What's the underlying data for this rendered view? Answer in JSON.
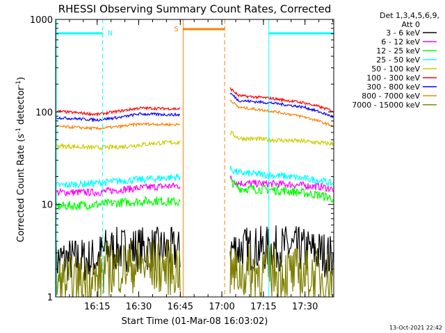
{
  "chart_data": {
    "type": "line",
    "title": "RHESSI Observing Summary Count Rates, Corrected",
    "xlabel": "Start Time (01-Mar-08 16:03:02)",
    "ylabel": "Corrected Count Rate (s⁻¹ detector⁻¹)",
    "ylabel_main": "Corrected Count Rate (s",
    "ylabel_sup1": "-1",
    "ylabel_mid": " detector",
    "ylabel_sup2": "-1",
    "ylabel_end": ")",
    "yscale": "log",
    "ylim": [
      1,
      1000
    ],
    "xlim_minutes": [
      16.0,
      17.673
    ],
    "x_ticks": [
      {
        "label": "16:15",
        "min": 16.25
      },
      {
        "label": "16:30",
        "min": 16.5
      },
      {
        "label": "16:45",
        "min": 16.75
      },
      {
        "label": "17:00",
        "min": 17.0
      },
      {
        "label": "17:15",
        "min": 17.25
      },
      {
        "label": "17:30",
        "min": 17.5
      }
    ],
    "y_ticks": [
      {
        "label": "1",
        "value": 1
      },
      {
        "label": "10",
        "value": 10
      },
      {
        "label": "100",
        "value": 100
      },
      {
        "label": "1000",
        "value": 1000
      }
    ],
    "legend_header_1": "Det 1,3,4,5,6,9,",
    "legend_header_2": "Att 0",
    "legend_placement": "right",
    "series": [
      {
        "name": "3 - 6 keV",
        "color": "#000000",
        "segments": [
          {
            "t0": 16.0,
            "t1": 16.75,
            "pts": [
              [
                16.0,
                2.5
              ],
              [
                16.2,
                2.5
              ],
              [
                16.25,
                2.6
              ],
              [
                16.3,
                3.2
              ],
              [
                16.5,
                3.3
              ],
              [
                16.7,
                3.2
              ],
              [
                16.75,
                3.0
              ]
            ],
            "noise": 0.5
          },
          {
            "t0": 17.05,
            "t1": 17.673,
            "pts": [
              [
                17.05,
                3.3
              ],
              [
                17.2,
                3.3
              ],
              [
                17.4,
                3.4
              ],
              [
                17.6,
                3.0
              ],
              [
                17.673,
                2.6
              ]
            ],
            "noise": 0.5
          }
        ]
      },
      {
        "name": "6 - 12 keV",
        "color": "#ff00ff",
        "segments": [
          {
            "t0": 16.0,
            "t1": 16.75,
            "pts": [
              [
                16.0,
                13.5
              ],
              [
                16.25,
                13.5
              ],
              [
                16.4,
                14.5
              ],
              [
                16.6,
                15.5
              ],
              [
                16.75,
                16.0
              ]
            ],
            "noise": 0.08
          },
          {
            "t0": 17.05,
            "t1": 17.673,
            "pts": [
              [
                17.05,
                19
              ],
              [
                17.1,
                17
              ],
              [
                17.4,
                16.5
              ],
              [
                17.6,
                15.5
              ],
              [
                17.673,
                14.5
              ]
            ],
            "noise": 0.08
          }
        ]
      },
      {
        "name": "12 - 25 keV",
        "color": "#00ff00",
        "segments": [
          {
            "t0": 16.0,
            "t1": 16.75,
            "pts": [
              [
                16.0,
                9.5
              ],
              [
                16.25,
                10.0
              ],
              [
                16.4,
                10.5
              ],
              [
                16.6,
                11.0
              ],
              [
                16.75,
                10.5
              ]
            ],
            "noise": 0.1
          },
          {
            "t0": 17.05,
            "t1": 17.673,
            "pts": [
              [
                17.05,
                18
              ],
              [
                17.1,
                15
              ],
              [
                17.4,
                14
              ],
              [
                17.6,
                12.5
              ],
              [
                17.673,
                11.5
              ]
            ],
            "noise": 0.1
          }
        ]
      },
      {
        "name": "25 - 50 keV",
        "color": "#00ffff",
        "segments": [
          {
            "t0": 16.0,
            "t1": 16.75,
            "pts": [
              [
                16.0,
                16
              ],
              [
                16.25,
                17
              ],
              [
                16.4,
                18
              ],
              [
                16.6,
                19
              ],
              [
                16.75,
                20
              ]
            ],
            "noise": 0.08
          },
          {
            "t0": 17.05,
            "t1": 17.673,
            "pts": [
              [
                17.05,
                24
              ],
              [
                17.1,
                22
              ],
              [
                17.4,
                20
              ],
              [
                17.6,
                18
              ],
              [
                17.673,
                16.5
              ]
            ],
            "noise": 0.08
          }
        ]
      },
      {
        "name": "50 - 100 keV",
        "color": "#cccc00",
        "segments": [
          {
            "t0": 16.0,
            "t1": 16.75,
            "pts": [
              [
                16.0,
                43
              ],
              [
                16.25,
                41
              ],
              [
                16.4,
                42
              ],
              [
                16.6,
                46
              ],
              [
                16.75,
                47
              ]
            ],
            "noise": 0.05
          },
          {
            "t0": 17.05,
            "t1": 17.673,
            "pts": [
              [
                17.05,
                60
              ],
              [
                17.1,
                52
              ],
              [
                17.3,
                50
              ],
              [
                17.5,
                48
              ],
              [
                17.673,
                45
              ]
            ],
            "noise": 0.05
          }
        ]
      },
      {
        "name": "100 - 300 keV",
        "color": "#ff0000",
        "segments": [
          {
            "t0": 16.0,
            "t1": 16.75,
            "pts": [
              [
                16.0,
                102
              ],
              [
                16.25,
                94
              ],
              [
                16.4,
                103
              ],
              [
                16.5,
                110
              ],
              [
                16.75,
                108
              ]
            ],
            "noise": 0.03
          },
          {
            "t0": 17.05,
            "t1": 17.673,
            "pts": [
              [
                17.05,
                180
              ],
              [
                17.1,
                150
              ],
              [
                17.3,
                140
              ],
              [
                17.5,
                125
              ],
              [
                17.673,
                102
              ]
            ],
            "noise": 0.03
          }
        ]
      },
      {
        "name": "300 - 800 keV",
        "color": "#0000ff",
        "segments": [
          {
            "t0": 16.0,
            "t1": 16.75,
            "pts": [
              [
                16.0,
                87
              ],
              [
                16.25,
                82
              ],
              [
                16.4,
                88
              ],
              [
                16.5,
                95
              ],
              [
                16.75,
                93
              ]
            ],
            "noise": 0.03
          },
          {
            "t0": 17.05,
            "t1": 17.673,
            "pts": [
              [
                17.05,
                160
              ],
              [
                17.1,
                133
              ],
              [
                17.3,
                125
              ],
              [
                17.5,
                112
              ],
              [
                17.673,
                88
              ]
            ],
            "noise": 0.03
          }
        ]
      },
      {
        "name": "800 - 7000 keV",
        "color": "#ff8000",
        "segments": [
          {
            "t0": 16.0,
            "t1": 16.75,
            "pts": [
              [
                16.0,
                70
              ],
              [
                16.25,
                66
              ],
              [
                16.4,
                70
              ],
              [
                16.5,
                74
              ],
              [
                16.75,
                73
              ]
            ],
            "noise": 0.03
          },
          {
            "t0": 17.05,
            "t1": 17.673,
            "pts": [
              [
                17.05,
                135
              ],
              [
                17.1,
                112
              ],
              [
                17.3,
                102
              ],
              [
                17.5,
                88
              ],
              [
                17.673,
                70
              ]
            ],
            "noise": 0.03
          }
        ]
      },
      {
        "name": "7000 - 15000 keV",
        "color": "#808000",
        "segments": [
          {
            "t0": 16.0,
            "t1": 16.75,
            "pts": [
              [
                16.0,
                1.4
              ],
              [
                16.25,
                1.5
              ],
              [
                16.3,
                2.0
              ],
              [
                16.5,
                2.2
              ],
              [
                16.75,
                2.0
              ]
            ],
            "noise": 0.6
          },
          {
            "t0": 17.05,
            "t1": 17.673,
            "pts": [
              [
                17.05,
                1.8
              ],
              [
                17.3,
                1.9
              ],
              [
                17.5,
                1.7
              ],
              [
                17.673,
                1.6
              ]
            ],
            "noise": 0.6
          }
        ]
      }
    ],
    "annotations": {
      "N_label": "N",
      "S_label": "S",
      "night_color": "#00ffff",
      "saa_color": "#ff8000",
      "night_bars": [
        {
          "t0": 16.0,
          "t1": 16.283
        },
        {
          "t0": 17.283,
          "t1": 17.673
        }
      ],
      "night_dashed": [
        16.283,
        17.673
      ],
      "night_solid": [
        16.0,
        17.283
      ],
      "saa_bar": {
        "t0": 16.767,
        "t1": 17.017
      },
      "saa_solid": [
        16.767
      ],
      "saa_dashed": [
        17.017
      ]
    },
    "timestamp": "13-Oct-2021 22:42"
  }
}
